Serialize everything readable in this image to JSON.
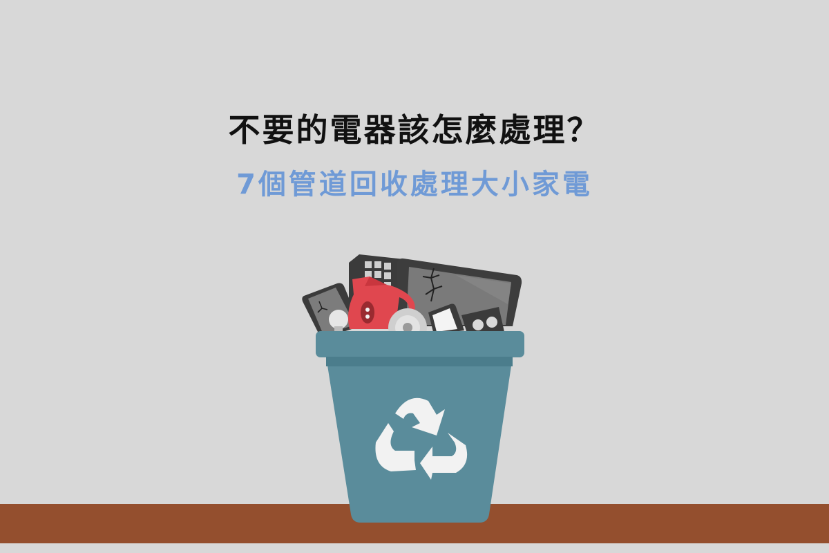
{
  "headline": {
    "title": "不要的電器該怎麼處理？",
    "subtitle": "7個管道回收處理大小家電"
  },
  "colors": {
    "background": "#d8d8d8",
    "title": "#111111",
    "subtitle": "#6f9ad6",
    "bin": "#5a8c9b",
    "bin_rim": "#4b7d8c",
    "floor": "#944f2e",
    "recycle_symbol": "#f2f2f2",
    "kettle": "#e0474f"
  },
  "illustration": {
    "icons": [
      "recycle-bin-icon",
      "recycle-symbol-icon",
      "broken-tablet-icon",
      "cracked-phone-icon",
      "red-kettle-icon",
      "remote-control-icon",
      "disc-icon",
      "smartphone-icon",
      "radio-icon",
      "light-bulb-icon"
    ]
  }
}
